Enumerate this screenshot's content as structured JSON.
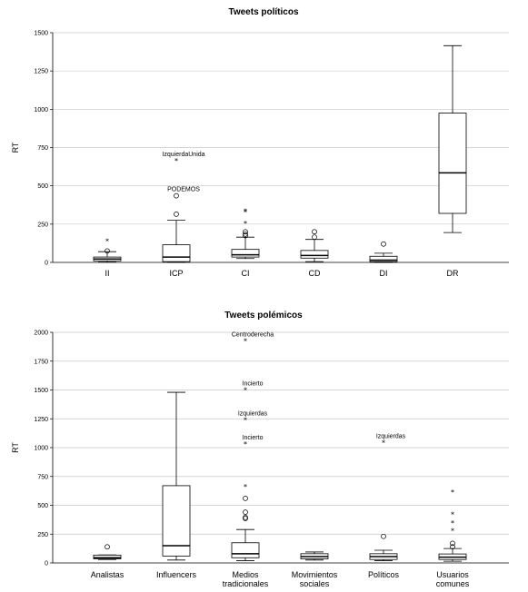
{
  "chart_data": [
    {
      "type": "box",
      "title": "Tweets políticos",
      "xlabel": "",
      "ylabel": "RT",
      "ylim": [
        0,
        1500
      ],
      "yticks": [
        0,
        250,
        500,
        750,
        1000,
        1250,
        1500
      ],
      "grid": true,
      "categories": [
        "II",
        "ICP",
        "CI",
        "CD",
        "DI",
        "DR"
      ],
      "boxes": [
        {
          "category": "II",
          "min": 2,
          "q1": 10,
          "median": 22,
          "q3": 35,
          "max": 70,
          "outliers": [
            {
              "value": 75,
              "marker": "o"
            }
          ],
          "extremes": [
            {
              "value": 140,
              "marker": "*"
            }
          ]
        },
        {
          "category": "ICP",
          "min": 0,
          "q1": 5,
          "median": 35,
          "q3": 115,
          "max": 275,
          "outliers": [
            {
              "value": 315,
              "marker": "o"
            },
            {
              "value": 435,
              "marker": "o",
              "label": "PODEMOS"
            }
          ],
          "extremes": [
            {
              "value": 665,
              "marker": "*",
              "label": "IzquierdaUnida"
            }
          ]
        },
        {
          "category": "CI",
          "min": 25,
          "q1": 35,
          "median": 50,
          "q3": 85,
          "max": 165,
          "outliers": [
            {
              "value": 175,
              "marker": "o"
            },
            {
              "value": 185,
              "marker": "o"
            },
            {
              "value": 200,
              "marker": "o"
            }
          ],
          "extremes": [
            {
              "value": 255,
              "marker": "*"
            },
            {
              "value": 330,
              "marker": "*"
            },
            {
              "value": 335,
              "marker": "*"
            }
          ]
        },
        {
          "category": "CD",
          "min": 5,
          "q1": 28,
          "median": 45,
          "q3": 78,
          "max": 150,
          "outliers": [
            {
              "value": 165,
              "marker": "o"
            },
            {
              "value": 200,
              "marker": "o"
            }
          ],
          "extremes": []
        },
        {
          "category": "DI",
          "min": 0,
          "q1": 5,
          "median": 15,
          "q3": 40,
          "max": 60,
          "outliers": [
            {
              "value": 120,
              "marker": "o"
            }
          ],
          "extremes": []
        },
        {
          "category": "DR",
          "min": 195,
          "q1": 320,
          "median": 585,
          "q3": 975,
          "max": 1415,
          "outliers": [],
          "extremes": []
        }
      ]
    },
    {
      "type": "box",
      "title": "Tweets polémicos",
      "xlabel": "",
      "ylabel": "RT",
      "ylim": [
        0,
        2000
      ],
      "yticks": [
        0,
        250,
        500,
        750,
        1000,
        1250,
        1500,
        1750,
        2000
      ],
      "grid": true,
      "categories": [
        [
          "Analistas"
        ],
        [
          "Influencers"
        ],
        [
          "Medios",
          "tradicionales"
        ],
        [
          "Movimientos",
          "sociales"
        ],
        [
          "Políticos"
        ],
        [
          "Usuarios",
          "comunes"
        ]
      ],
      "boxes": [
        {
          "category": "Analistas",
          "min": 30,
          "q1": 35,
          "median": 45,
          "q3": 68,
          "max": 70,
          "outliers": [
            {
              "value": 140,
              "marker": "o"
            }
          ],
          "extremes": []
        },
        {
          "category": "Influencers",
          "min": 25,
          "q1": 60,
          "median": 150,
          "q3": 670,
          "max": 1480,
          "outliers": [],
          "extremes": []
        },
        {
          "category": "Medios tradicionales",
          "min": 20,
          "q1": 45,
          "median": 80,
          "q3": 175,
          "max": 290,
          "outliers": [
            {
              "value": 385,
              "marker": "o"
            },
            {
              "value": 395,
              "marker": "o"
            },
            {
              "value": 440,
              "marker": "o"
            },
            {
              "value": 560,
              "marker": "o"
            }
          ],
          "extremes": [
            {
              "value": 660,
              "marker": "*"
            },
            {
              "value": 1030,
              "marker": "*",
              "label": "Incierto"
            },
            {
              "value": 1240,
              "marker": "*",
              "label": "Izquierdas"
            },
            {
              "value": 1500,
              "marker": "*",
              "label": "Incierto"
            },
            {
              "value": 1925,
              "marker": "*",
              "label": "Centroderecha"
            }
          ]
        },
        {
          "category": "Movimientos sociales",
          "min": 25,
          "q1": 35,
          "median": 55,
          "q3": 80,
          "max": 95,
          "outliers": [],
          "extremes": []
        },
        {
          "category": "Políticos",
          "min": 20,
          "q1": 30,
          "median": 55,
          "q3": 80,
          "max": 110,
          "outliers": [
            {
              "value": 230,
              "marker": "o"
            }
          ],
          "extremes": [
            {
              "value": 1045,
              "marker": "*",
              "label": "Izquierdas"
            }
          ]
        },
        {
          "category": "Usuarios comunes",
          "min": 15,
          "q1": 30,
          "median": 50,
          "q3": 78,
          "max": 125,
          "outliers": [
            {
              "value": 140,
              "marker": "o"
            },
            {
              "value": 170,
              "marker": "o"
            }
          ],
          "extremes": [
            {
              "value": 280,
              "marker": "*"
            },
            {
              "value": 345,
              "marker": "*"
            },
            {
              "value": 420,
              "marker": "*"
            },
            {
              "value": 615,
              "marker": "*"
            }
          ]
        }
      ]
    }
  ]
}
